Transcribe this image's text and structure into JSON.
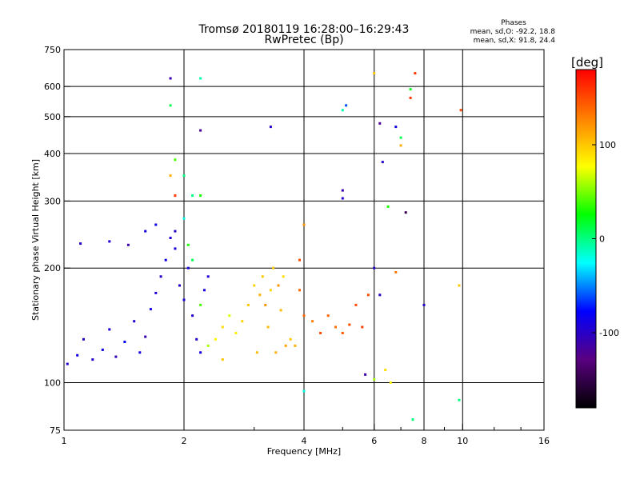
{
  "chart_data": {
    "type": "scatter",
    "title": "Tromsø 20180119 16:28:00–16:29:43",
    "subtitle": "RwPretec (Bp)",
    "stats": {
      "heading": "Phases",
      "line1": "mean, sd,O: -92.2, 18.8",
      "line2": "mean, sd,X:  91.8, 24.4"
    },
    "xlabel": "Frequency [MHz]",
    "ylabel": "Stationary phase Virtual Height [km]",
    "xscale": "log",
    "yscale": "log",
    "xlim": [
      1,
      16
    ],
    "ylim": [
      75,
      750
    ],
    "x_ticks": [
      "1",
      "2",
      "4",
      "6",
      "8",
      "10",
      "16"
    ],
    "y_ticks": [
      "75",
      "100",
      "200",
      "300",
      "400",
      "500",
      "600",
      "750"
    ],
    "colorbar": {
      "label": "[deg]",
      "range": [
        -180,
        180
      ],
      "ticks": [
        "-100",
        "0",
        "100"
      ],
      "colors": [
        "#000000",
        "#5a0080",
        "#0000ff",
        "#00ffff",
        "#00ff00",
        "#ffff00",
        "#ff8000",
        "#ff0000"
      ]
    },
    "series": [
      {
        "points": [
          [
            1.02,
            112,
            -95
          ],
          [
            1.08,
            118,
            -90
          ],
          [
            1.12,
            130,
            -98
          ],
          [
            1.18,
            115,
            -100
          ],
          [
            1.25,
            122,
            -85
          ],
          [
            1.3,
            138,
            -92
          ],
          [
            1.35,
            117,
            -105
          ],
          [
            1.42,
            128,
            -80
          ],
          [
            1.5,
            145,
            -95
          ],
          [
            1.55,
            120,
            -88
          ],
          [
            1.6,
            132,
            -110
          ],
          [
            1.65,
            156,
            -90
          ],
          [
            1.7,
            172,
            -95
          ],
          [
            1.75,
            190,
            -100
          ],
          [
            1.8,
            210,
            -85
          ],
          [
            1.85,
            240,
            -95
          ],
          [
            1.9,
            225,
            -90
          ],
          [
            1.95,
            180,
            -100
          ],
          [
            2.0,
            165,
            -92
          ],
          [
            2.05,
            200,
            -88
          ],
          [
            2.1,
            150,
            -95
          ],
          [
            2.15,
            130,
            -100
          ],
          [
            2.2,
            120,
            -85
          ],
          [
            2.25,
            175,
            -90
          ],
          [
            2.3,
            190,
            -95
          ],
          [
            1.45,
            230,
            -110
          ],
          [
            1.6,
            250,
            -90
          ],
          [
            1.7,
            260,
            -85
          ],
          [
            1.3,
            235,
            -95
          ],
          [
            1.1,
            232,
            -100
          ],
          [
            2.0,
            270,
            -20
          ],
          [
            2.05,
            230,
            30
          ],
          [
            2.1,
            210,
            10
          ],
          [
            2.2,
            160,
            40
          ],
          [
            2.3,
            125,
            60
          ],
          [
            2.4,
            130,
            80
          ],
          [
            2.5,
            140,
            90
          ],
          [
            2.6,
            150,
            70
          ],
          [
            2.7,
            135,
            85
          ],
          [
            2.8,
            145,
            95
          ],
          [
            2.9,
            160,
            100
          ],
          [
            3.0,
            180,
            95
          ],
          [
            3.05,
            120,
            105
          ],
          [
            3.1,
            170,
            110
          ],
          [
            3.15,
            190,
            100
          ],
          [
            3.2,
            160,
            120
          ],
          [
            3.25,
            140,
            105
          ],
          [
            3.3,
            175,
            95
          ],
          [
            3.35,
            200,
            100
          ],
          [
            3.4,
            120,
            110
          ],
          [
            3.45,
            180,
            120
          ],
          [
            3.5,
            155,
            105
          ],
          [
            3.55,
            190,
            90
          ],
          [
            3.6,
            125,
            115
          ],
          [
            3.7,
            130,
            100
          ],
          [
            3.8,
            125,
            110
          ],
          [
            3.9,
            210,
            150
          ],
          [
            4.0,
            150,
            140
          ],
          [
            4.2,
            145,
            130
          ],
          [
            4.4,
            135,
            150
          ],
          [
            4.6,
            150,
            140
          ],
          [
            4.8,
            140,
            135
          ],
          [
            5.0,
            135,
            145
          ],
          [
            5.2,
            142,
            150
          ],
          [
            5.4,
            160,
            150
          ],
          [
            5.6,
            140,
            155
          ],
          [
            5.8,
            170,
            150
          ],
          [
            6.0,
            200,
            -100
          ],
          [
            5.7,
            105,
            -110
          ],
          [
            6.0,
            102,
            60
          ],
          [
            6.2,
            170,
            -100
          ],
          [
            6.4,
            108,
            90
          ],
          [
            6.6,
            100,
            80
          ],
          [
            6.8,
            195,
            130
          ],
          [
            7.0,
            420,
            110
          ],
          [
            7.2,
            280,
            -150
          ],
          [
            7.4,
            560,
            160
          ],
          [
            7.6,
            650,
            160
          ],
          [
            7.4,
            590,
            20
          ],
          [
            7.5,
            80,
            0
          ],
          [
            8.0,
            160,
            -100
          ],
          [
            9.8,
            180,
            100
          ],
          [
            9.9,
            520,
            150
          ],
          [
            9.8,
            90,
            0
          ],
          [
            6.0,
            650,
            100
          ],
          [
            6.2,
            480,
            -120
          ],
          [
            6.3,
            380,
            -100
          ],
          [
            6.5,
            290,
            30
          ],
          [
            6.8,
            470,
            -90
          ],
          [
            7.0,
            440,
            10
          ],
          [
            5.0,
            320,
            -110
          ],
          [
            5.0,
            305,
            -100
          ],
          [
            4.0,
            260,
            120
          ],
          [
            3.9,
            175,
            140
          ],
          [
            4.0,
            95,
            -20
          ],
          [
            1.9,
            250,
            -100
          ],
          [
            1.85,
            630,
            -110
          ],
          [
            2.2,
            630,
            -10
          ],
          [
            2.2,
            460,
            -120
          ],
          [
            1.85,
            535,
            10
          ],
          [
            1.9,
            385,
            40
          ],
          [
            1.85,
            350,
            110
          ],
          [
            1.9,
            310,
            160
          ],
          [
            2.0,
            350,
            0
          ],
          [
            2.1,
            310,
            0
          ],
          [
            2.2,
            310,
            30
          ],
          [
            3.3,
            470,
            -100
          ],
          [
            5.0,
            520,
            -10
          ],
          [
            5.1,
            535,
            -60
          ],
          [
            2.5,
            115,
            100
          ]
        ]
      }
    ]
  }
}
